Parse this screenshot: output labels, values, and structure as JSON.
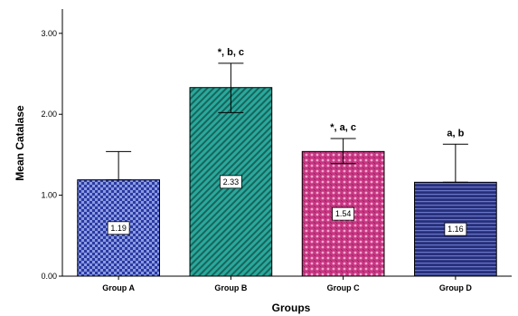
{
  "chart_data": {
    "type": "bar",
    "xlabel": "Groups",
    "ylabel": "Mean Catalase",
    "ylim": [
      0,
      3.3
    ],
    "yticks": [
      "0.00",
      "1.00",
      "2.00",
      "3.00"
    ],
    "categories": [
      "Group A",
      "Group B",
      "Group C",
      "Group D"
    ],
    "values": [
      1.19,
      2.33,
      1.54,
      1.16
    ],
    "value_labels": [
      "1.19",
      "2.33",
      "1.54",
      "1.16"
    ],
    "error_bars": [
      {
        "low": 1.19,
        "high": 1.54
      },
      {
        "low": 2.02,
        "high": 2.63
      },
      {
        "low": 1.39,
        "high": 1.7
      },
      {
        "low": 1.16,
        "high": 1.63
      }
    ],
    "annotations": [
      "",
      "*, b, c",
      "*, a, c",
      "a, b"
    ],
    "colors": [
      "#2b3aa3",
      "#2aa89b",
      "#c73682",
      "#262f7a"
    ],
    "patterns": [
      "checker",
      "diagonal",
      "lattice",
      "horizontal"
    ],
    "grid": false
  }
}
